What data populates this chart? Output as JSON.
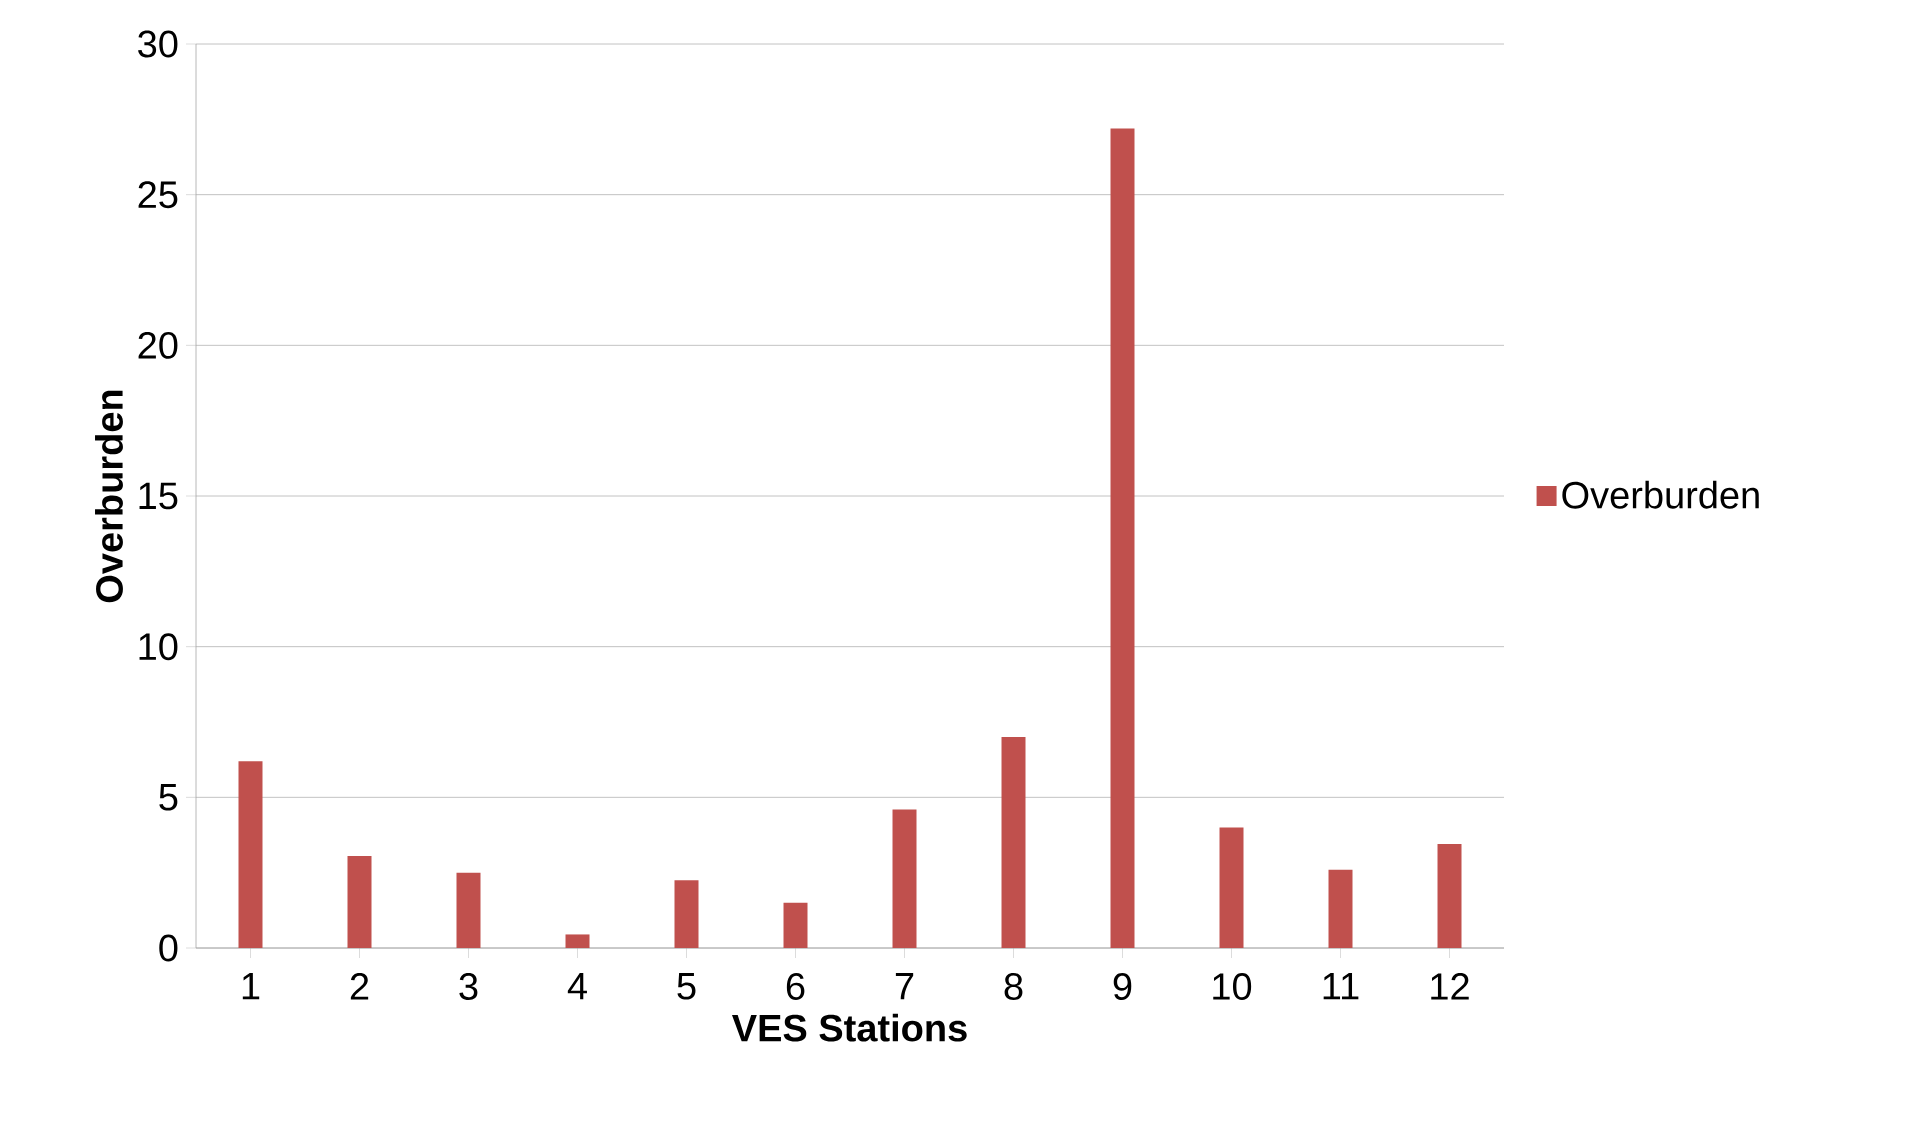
{
  "chart_data": {
    "type": "bar",
    "xlabel": "VES Stations",
    "ylabel": "Overburden",
    "categories": [
      "1",
      "2",
      "3",
      "4",
      "5",
      "6",
      "7",
      "8",
      "9",
      "10",
      "11",
      "12"
    ],
    "series": [
      {
        "name": "Overburden",
        "color": "#c0504d",
        "values": [
          6.2,
          3.05,
          2.5,
          0.45,
          2.25,
          1.5,
          4.6,
          7.0,
          27.2,
          4.0,
          2.6,
          3.45
        ]
      }
    ],
    "ylim": [
      0,
      30
    ],
    "yticks": [
      0,
      5,
      10,
      15,
      20,
      25,
      30
    ],
    "grid": "y",
    "legend": "right"
  }
}
